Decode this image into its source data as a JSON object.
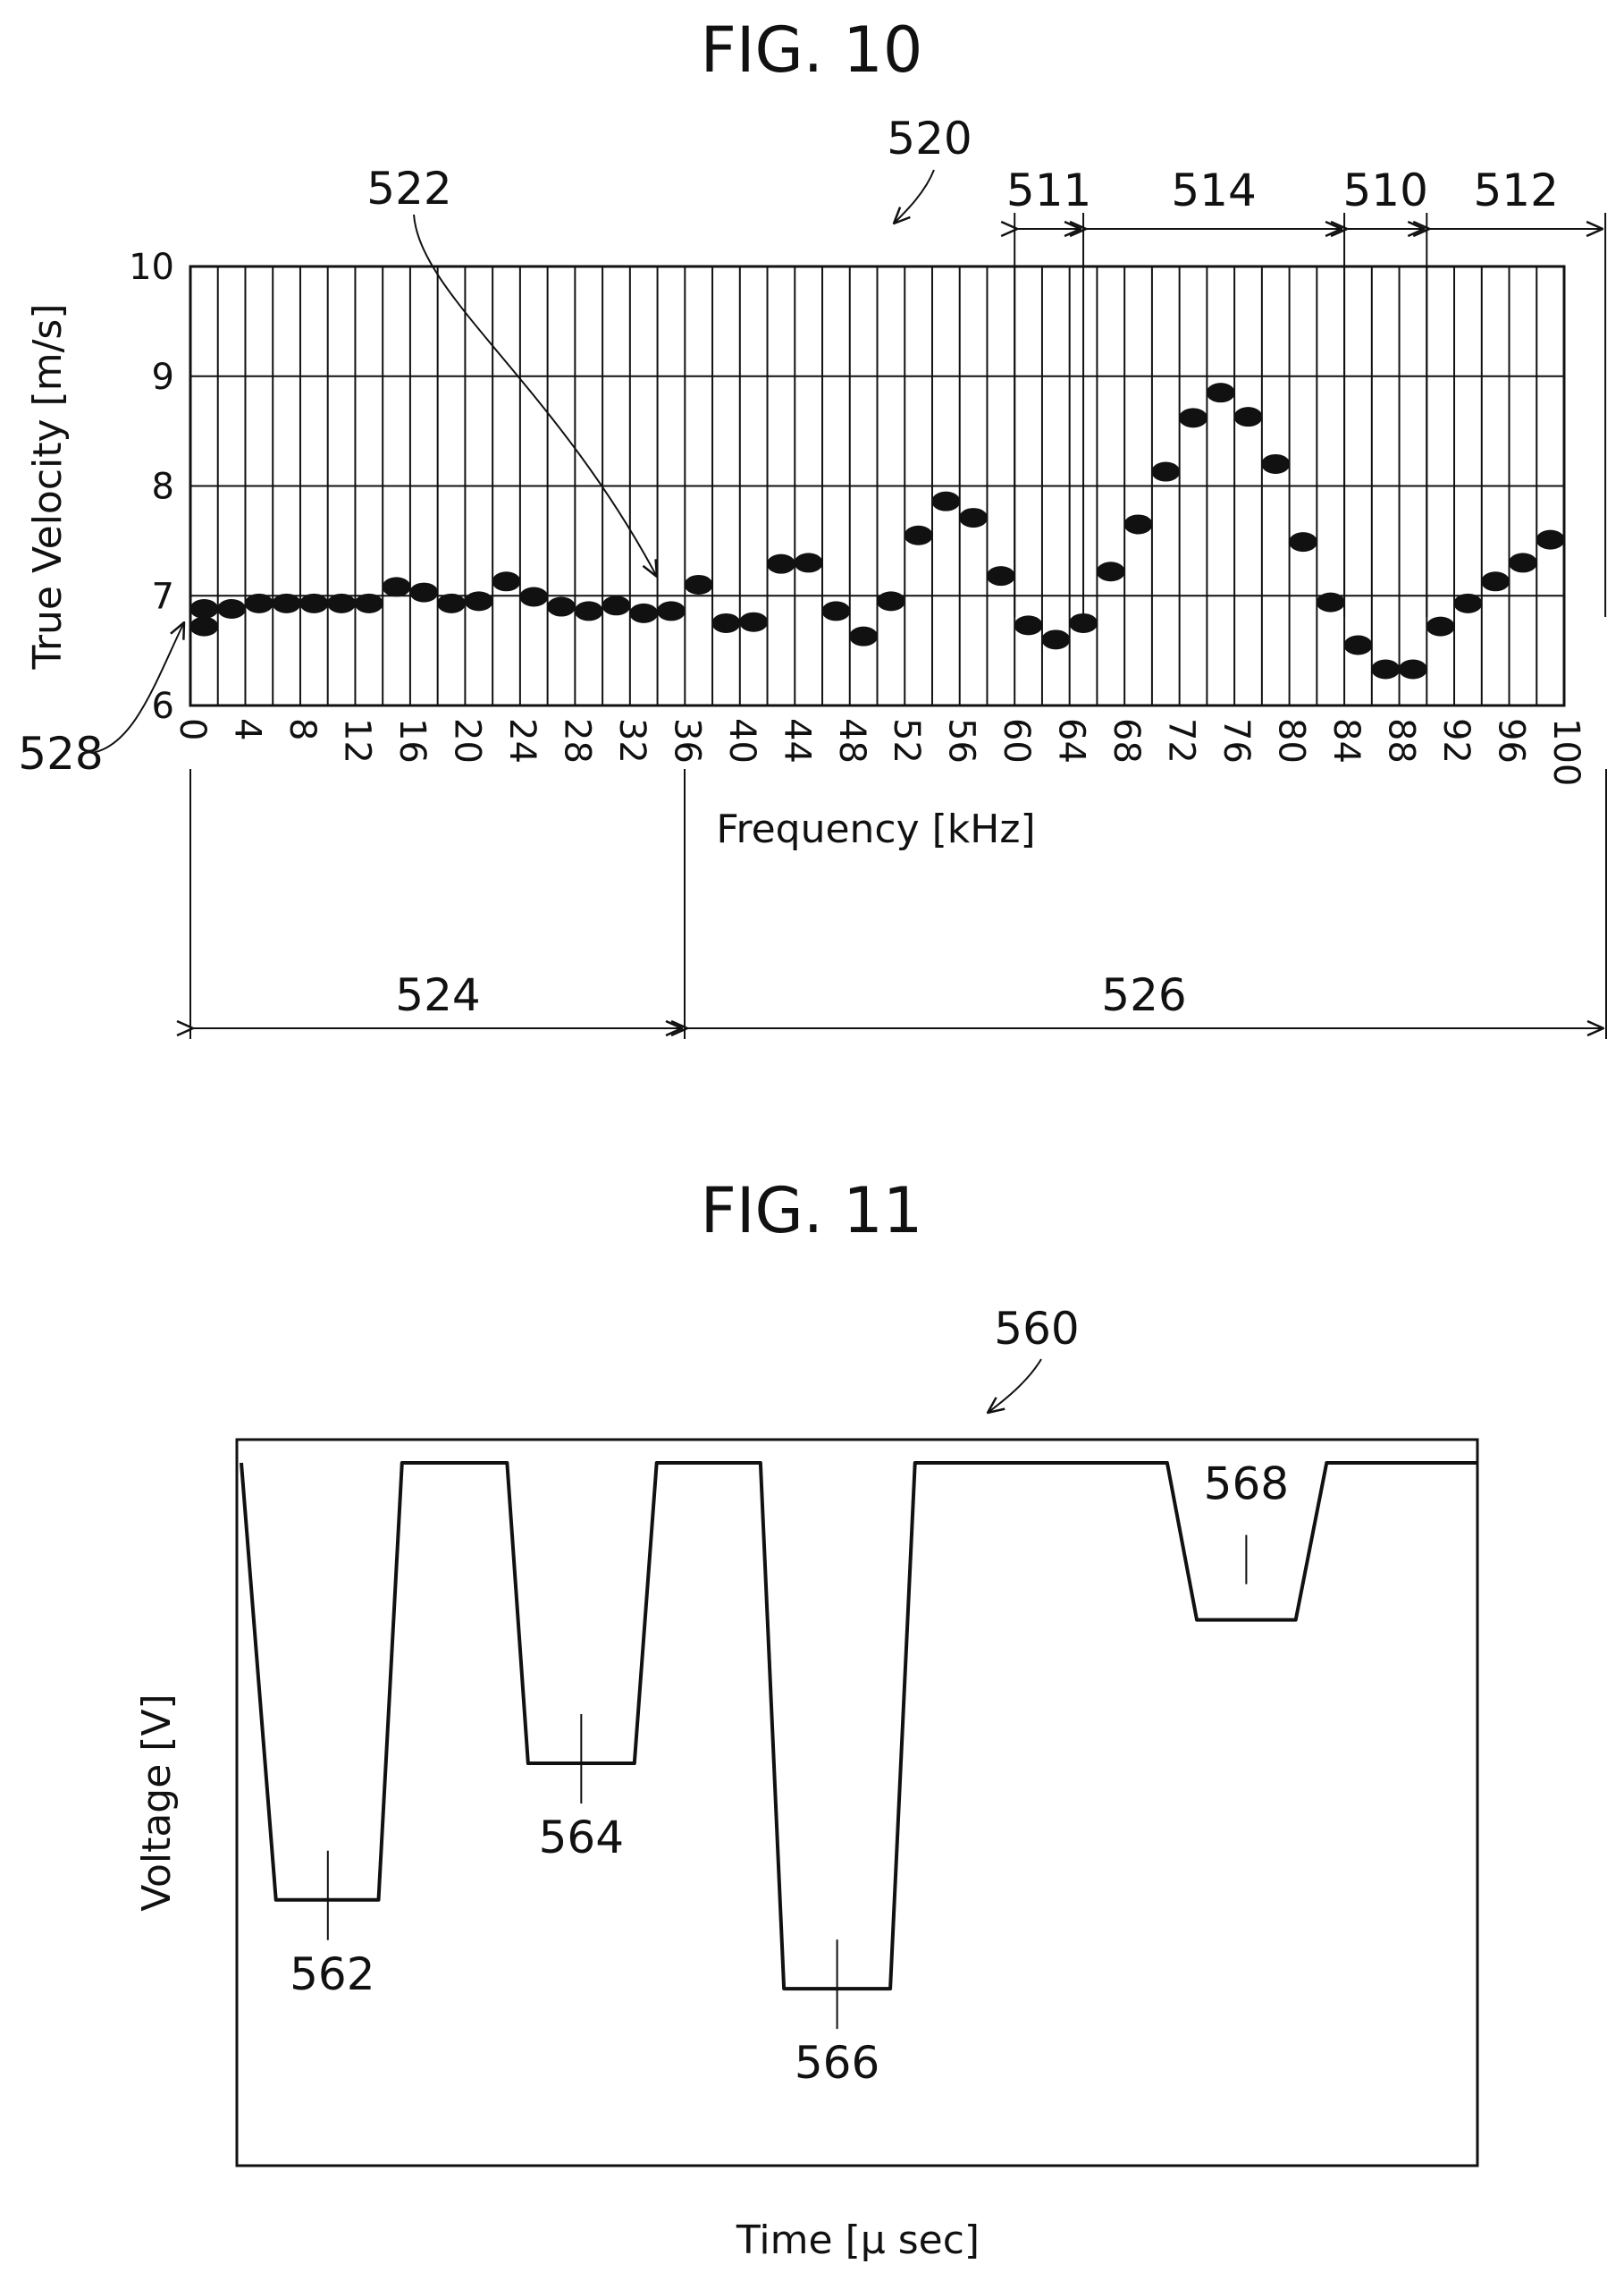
{
  "figures": [
    {
      "title": "FIG. 10",
      "chart_data": {
        "type": "scatter",
        "xlabel": "Frequency [kHz]",
        "ylabel": "True Velocity [m/s]",
        "xlim": [
          0,
          100
        ],
        "ylim": [
          6,
          10
        ],
        "xticks": [
          0,
          4,
          8,
          12,
          16,
          20,
          24,
          28,
          32,
          36,
          40,
          44,
          48,
          52,
          56,
          60,
          64,
          68,
          72,
          76,
          80,
          84,
          88,
          92,
          96,
          100
        ],
        "yticks": [
          6,
          7,
          8,
          9,
          10
        ],
        "grid": true,
        "points": [
          {
            "x": 1,
            "y": 6.72
          },
          {
            "x": 1,
            "y": 6.88
          },
          {
            "x": 3,
            "y": 6.88
          },
          {
            "x": 5,
            "y": 6.93
          },
          {
            "x": 7,
            "y": 6.93
          },
          {
            "x": 9,
            "y": 6.93
          },
          {
            "x": 11,
            "y": 6.93
          },
          {
            "x": 13,
            "y": 6.93
          },
          {
            "x": 15,
            "y": 7.08
          },
          {
            "x": 17,
            "y": 7.03
          },
          {
            "x": 19,
            "y": 6.93
          },
          {
            "x": 21,
            "y": 6.95
          },
          {
            "x": 23,
            "y": 7.13
          },
          {
            "x": 25,
            "y": 6.99
          },
          {
            "x": 27,
            "y": 6.9
          },
          {
            "x": 29,
            "y": 6.86
          },
          {
            "x": 31,
            "y": 6.91
          },
          {
            "x": 33,
            "y": 6.84
          },
          {
            "x": 35,
            "y": 6.86
          },
          {
            "x": 37,
            "y": 7.1
          },
          {
            "x": 39,
            "y": 6.75
          },
          {
            "x": 41,
            "y": 6.76
          },
          {
            "x": 43,
            "y": 7.29
          },
          {
            "x": 45,
            "y": 7.3
          },
          {
            "x": 47,
            "y": 6.86
          },
          {
            "x": 49,
            "y": 6.63
          },
          {
            "x": 51,
            "y": 6.95
          },
          {
            "x": 53,
            "y": 7.55
          },
          {
            "x": 55,
            "y": 7.86
          },
          {
            "x": 57,
            "y": 7.71
          },
          {
            "x": 59,
            "y": 7.18
          },
          {
            "x": 61,
            "y": 6.73
          },
          {
            "x": 63,
            "y": 6.6
          },
          {
            "x": 65,
            "y": 6.75
          },
          {
            "x": 67,
            "y": 7.22
          },
          {
            "x": 69,
            "y": 7.65
          },
          {
            "x": 71,
            "y": 8.13
          },
          {
            "x": 73,
            "y": 8.62
          },
          {
            "x": 75,
            "y": 8.85
          },
          {
            "x": 77,
            "y": 8.63
          },
          {
            "x": 79,
            "y": 8.2
          },
          {
            "x": 81,
            "y": 7.49
          },
          {
            "x": 83,
            "y": 6.94
          },
          {
            "x": 85,
            "y": 6.55
          },
          {
            "x": 87,
            "y": 6.33
          },
          {
            "x": 89,
            "y": 6.33
          },
          {
            "x": 91,
            "y": 6.72
          },
          {
            "x": 93,
            "y": 6.93
          },
          {
            "x": 95,
            "y": 7.13
          },
          {
            "x": 97,
            "y": 7.3
          },
          {
            "x": 99,
            "y": 7.51
          }
        ],
        "annotations": {
          "graph": "520",
          "data_points": "522",
          "low_band": "524",
          "high_band": "526",
          "y_axis": "528",
          "bands_top": [
            {
              "label": "511",
              "from": 60,
              "to": 65
            },
            {
              "label": "514",
              "from": 65,
              "to": 84
            },
            {
              "label": "510",
              "from": 84,
              "to": 90
            },
            {
              "label": "512",
              "from": 90,
              "to": 103
            }
          ]
        }
      }
    },
    {
      "title": "FIG. 11",
      "chart_data": {
        "type": "line",
        "xlabel": "Time [μ sec]",
        "ylabel": "Voltage [V]",
        "series": [
          {
            "x": [
              0.0,
              2.8,
              11.1,
              13.0,
              21.5,
              23.2,
              31.8,
              33.6,
              42.0,
              43.9,
              52.5,
              54.5,
              74.9,
              77.3,
              85.3,
              87.8,
              100.0
            ],
            "values": [
              100,
              36,
              36,
              100,
              100,
              56,
              56,
              100,
              100,
              23,
              23,
              100,
              100,
              77,
              77,
              100,
              100
            ]
          }
        ],
        "annotations": {
          "waveform": "560",
          "dips": [
            {
              "label": "562",
              "x": 7.0,
              "y": 36
            },
            {
              "label": "564",
              "x": 27.5,
              "y": 56
            },
            {
              "label": "566",
              "x": 48.2,
              "y": 23
            },
            {
              "label": "568",
              "x": 81.3,
              "y": 77
            }
          ]
        }
      }
    }
  ]
}
